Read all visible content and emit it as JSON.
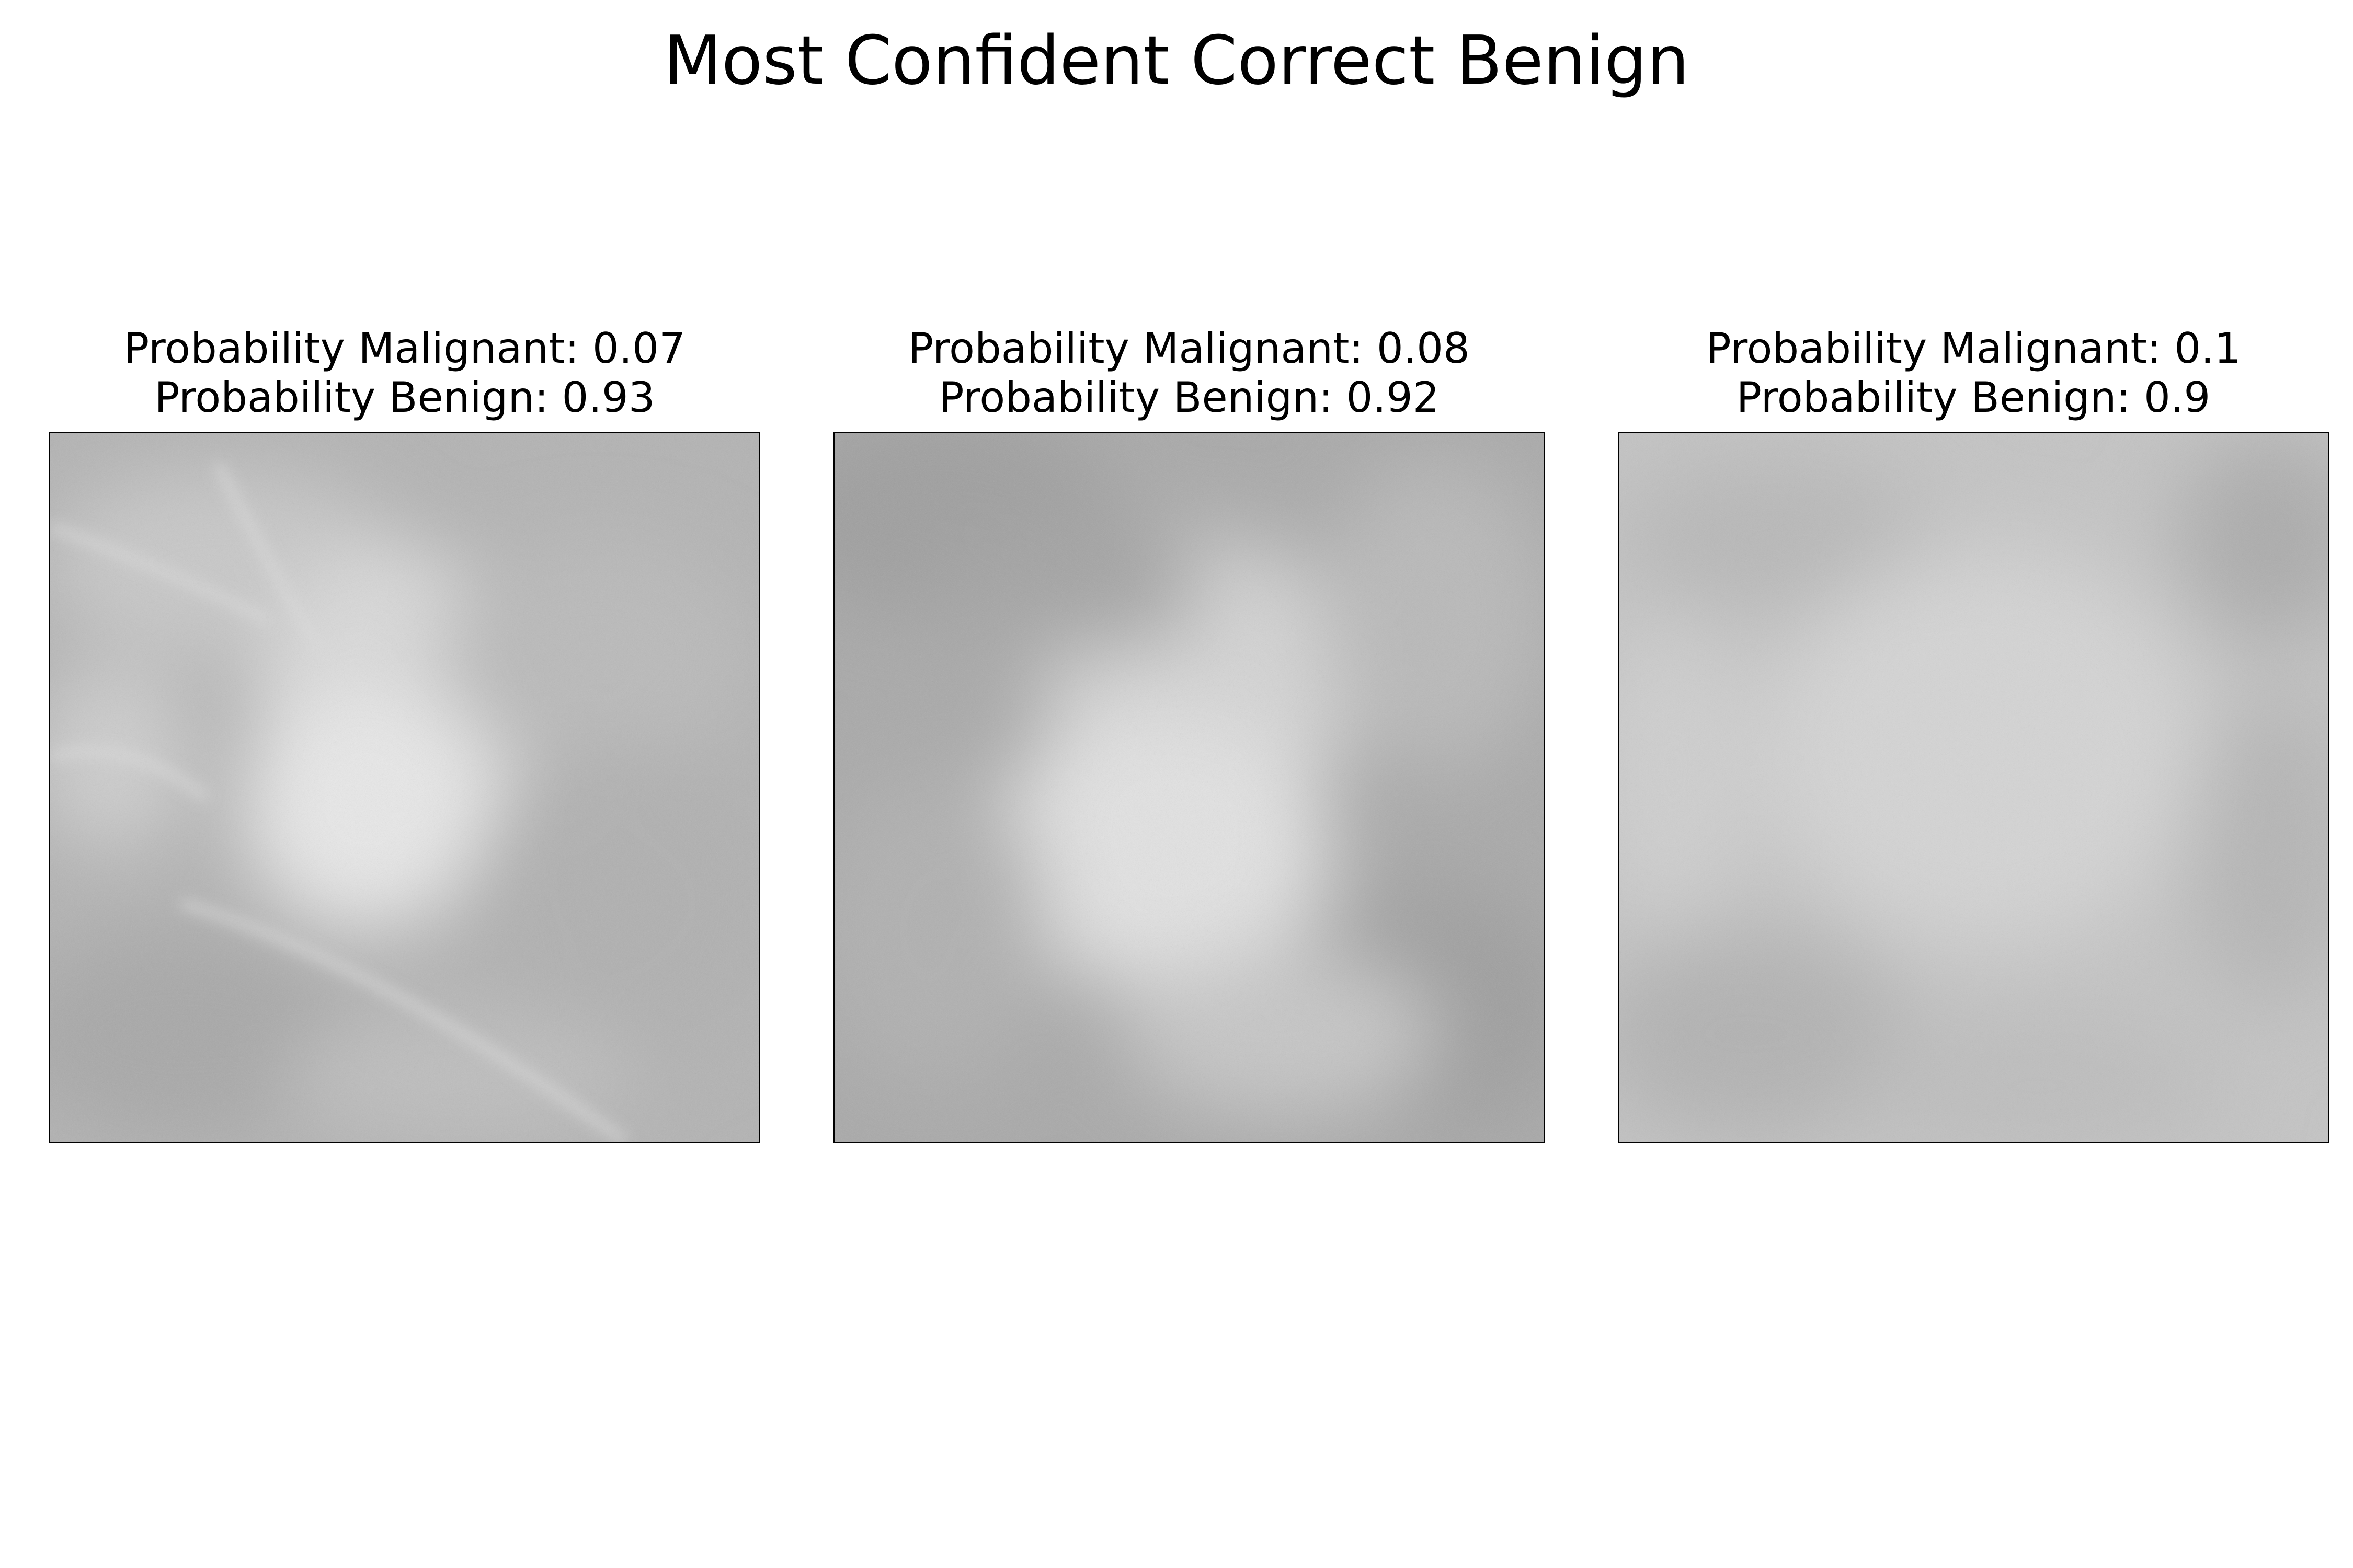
{
  "figure": {
    "title": "Most Confident Correct Benign"
  },
  "panels": [
    {
      "malignant_line": "Probability Malignant: 0.07",
      "benign_line": "Probability Benign: 0.93",
      "probability_malignant": 0.07,
      "probability_benign": 0.93,
      "image_icon": "mammogram-patch-icon"
    },
    {
      "malignant_line": "Probability Malignant: 0.08",
      "benign_line": "Probability Benign: 0.92",
      "probability_malignant": 0.08,
      "probability_benign": 0.92,
      "image_icon": "mammogram-patch-icon"
    },
    {
      "malignant_line": "Probability Malignant: 0.1",
      "benign_line": "Probability Benign: 0.9",
      "probability_malignant": 0.1,
      "probability_benign": 0.9,
      "image_icon": "mammogram-patch-icon"
    }
  ],
  "colors": {
    "background": "#ffffff",
    "frame": "#000000",
    "tissue_dark": "#a9a9a9",
    "tissue_mid": "#bdbdbd",
    "tissue_light": "#e6e6e6"
  }
}
